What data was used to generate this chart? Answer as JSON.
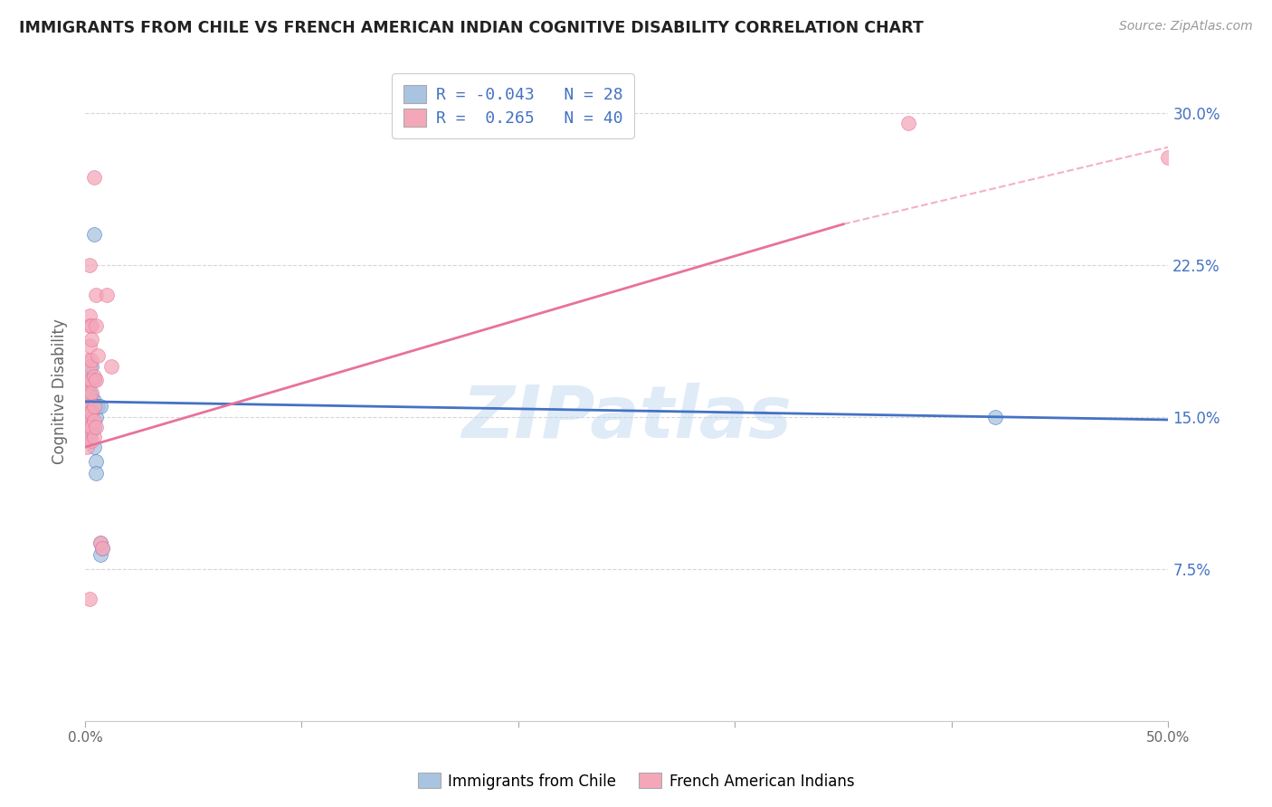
{
  "title": "IMMIGRANTS FROM CHILE VS FRENCH AMERICAN INDIAN COGNITIVE DISABILITY CORRELATION CHART",
  "source": "Source: ZipAtlas.com",
  "ylabel": "Cognitive Disability",
  "xlim": [
    0.0,
    0.5
  ],
  "ylim": [
    0.0,
    0.325
  ],
  "xticks": [
    0.0,
    0.1,
    0.2,
    0.3,
    0.4,
    0.5
  ],
  "xticklabels": [
    "0.0%",
    "",
    "",
    "",
    "",
    "50.0%"
  ],
  "yticks": [
    0.0,
    0.075,
    0.15,
    0.225,
    0.3
  ],
  "yticklabels": [
    "",
    "7.5%",
    "15.0%",
    "22.5%",
    "30.0%"
  ],
  "legend_labels": [
    "Immigrants from Chile",
    "French American Indians"
  ],
  "R_blue": -0.043,
  "N_blue": 28,
  "R_pink": 0.265,
  "N_pink": 40,
  "blue_color": "#a8c4e0",
  "pink_color": "#f4a7b9",
  "blue_line_color": "#4472c4",
  "pink_line_color": "#e8729a",
  "blue_scatter": [
    [
      0.001,
      0.155
    ],
    [
      0.001,
      0.165
    ],
    [
      0.001,
      0.15
    ],
    [
      0.002,
      0.17
    ],
    [
      0.002,
      0.148
    ],
    [
      0.002,
      0.162
    ],
    [
      0.002,
      0.14
    ],
    [
      0.002,
      0.158
    ],
    [
      0.003,
      0.155
    ],
    [
      0.003,
      0.143
    ],
    [
      0.003,
      0.175
    ],
    [
      0.003,
      0.16
    ],
    [
      0.003,
      0.152
    ],
    [
      0.004,
      0.168
    ],
    [
      0.004,
      0.145
    ],
    [
      0.004,
      0.24
    ],
    [
      0.004,
      0.158
    ],
    [
      0.004,
      0.135
    ],
    [
      0.005,
      0.155
    ],
    [
      0.005,
      0.15
    ],
    [
      0.005,
      0.128
    ],
    [
      0.005,
      0.122
    ],
    [
      0.006,
      0.155
    ],
    [
      0.007,
      0.155
    ],
    [
      0.007,
      0.088
    ],
    [
      0.007,
      0.082
    ],
    [
      0.008,
      0.085
    ],
    [
      0.42,
      0.15
    ]
  ],
  "pink_scatter": [
    [
      0.001,
      0.178
    ],
    [
      0.001,
      0.165
    ],
    [
      0.001,
      0.155
    ],
    [
      0.001,
      0.148
    ],
    [
      0.001,
      0.142
    ],
    [
      0.001,
      0.135
    ],
    [
      0.002,
      0.2
    ],
    [
      0.002,
      0.195
    ],
    [
      0.002,
      0.185
    ],
    [
      0.002,
      0.175
    ],
    [
      0.002,
      0.168
    ],
    [
      0.002,
      0.16
    ],
    [
      0.002,
      0.152
    ],
    [
      0.002,
      0.145
    ],
    [
      0.002,
      0.225
    ],
    [
      0.002,
      0.06
    ],
    [
      0.003,
      0.195
    ],
    [
      0.003,
      0.188
    ],
    [
      0.003,
      0.178
    ],
    [
      0.003,
      0.168
    ],
    [
      0.003,
      0.162
    ],
    [
      0.003,
      0.152
    ],
    [
      0.003,
      0.145
    ],
    [
      0.003,
      0.138
    ],
    [
      0.004,
      0.17
    ],
    [
      0.004,
      0.155
    ],
    [
      0.004,
      0.148
    ],
    [
      0.004,
      0.14
    ],
    [
      0.004,
      0.268
    ],
    [
      0.005,
      0.21
    ],
    [
      0.005,
      0.195
    ],
    [
      0.005,
      0.168
    ],
    [
      0.005,
      0.145
    ],
    [
      0.006,
      0.18
    ],
    [
      0.007,
      0.088
    ],
    [
      0.008,
      0.085
    ],
    [
      0.01,
      0.21
    ],
    [
      0.012,
      0.175
    ],
    [
      0.38,
      0.295
    ],
    [
      0.5,
      0.278
    ]
  ],
  "blue_trendline": [
    0.0,
    0.5,
    0.1575,
    0.1485
  ],
  "pink_trendline_solid": [
    0.0,
    0.35,
    0.135,
    0.245
  ],
  "pink_trendline_dash": [
    0.35,
    0.5,
    0.245,
    0.283
  ],
  "watermark": "ZIPatlas",
  "background_color": "#ffffff",
  "grid_color": "#d8d8d8"
}
